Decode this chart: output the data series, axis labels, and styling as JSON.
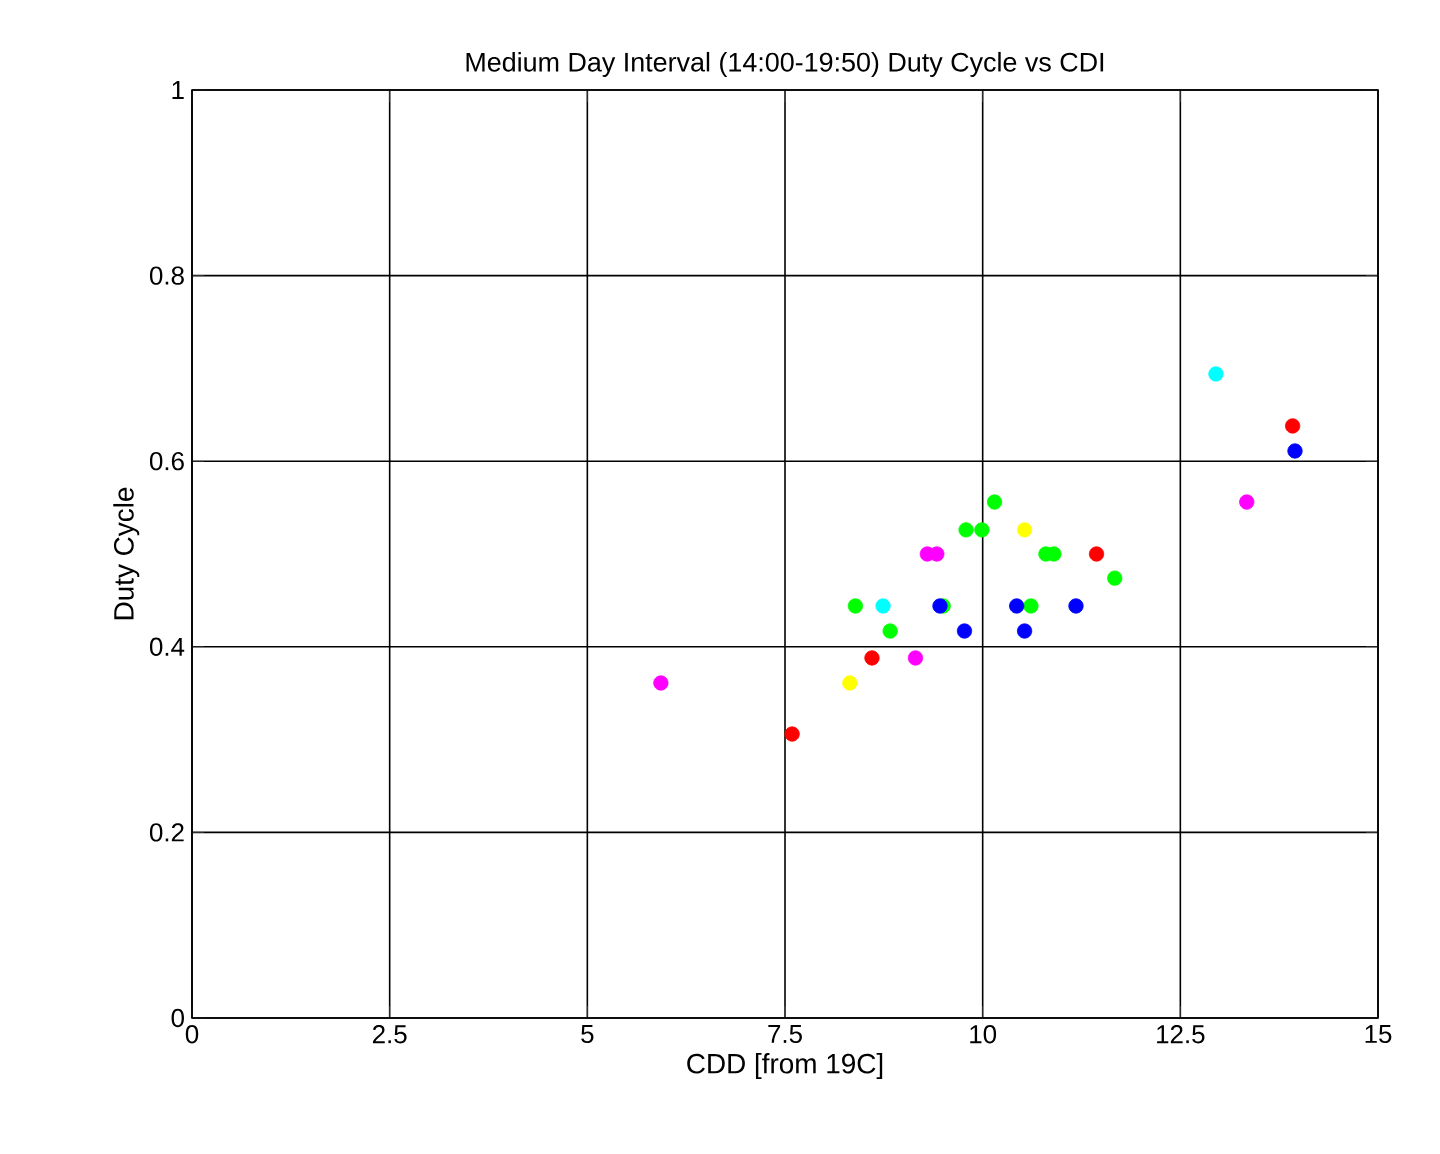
{
  "chart_data": {
    "type": "scatter",
    "title": "Medium Day Interval (14:00-19:50) Duty Cycle vs CDI",
    "xlabel": "CDD [from 19C]",
    "ylabel": "Duty Cycle",
    "xlim": [
      0,
      15
    ],
    "ylim": [
      0,
      1
    ],
    "xticks": [
      0,
      2.5,
      5,
      7.5,
      10,
      12.5,
      15
    ],
    "yticks": [
      0,
      0.2,
      0.4,
      0.6,
      0.8,
      1
    ],
    "grid": true,
    "marker": "circle",
    "series": [
      {
        "color": "#ff0000",
        "x": [
          7.59,
          8.6,
          11.44,
          13.92
        ],
        "values": [
          0.306,
          0.388,
          0.5,
          0.638
        ]
      },
      {
        "color": "#ff00ff",
        "x": [
          5.93,
          9.15,
          9.3,
          9.42,
          13.34
        ],
        "values": [
          0.361,
          0.388,
          0.5,
          0.5,
          0.556
        ]
      },
      {
        "color": "#ffff00",
        "x": [
          8.32,
          10.53
        ],
        "values": [
          0.361,
          0.526
        ]
      },
      {
        "color": "#00ffff",
        "x": [
          8.74,
          12.95
        ],
        "values": [
          0.444,
          0.694
        ]
      },
      {
        "color": "#00ff00",
        "x": [
          8.39,
          8.83,
          9.5,
          9.79,
          9.99,
          10.15,
          10.61,
          10.8,
          10.9,
          11.67
        ],
        "values": [
          0.444,
          0.417,
          0.444,
          0.526,
          0.526,
          0.556,
          0.444,
          0.5,
          0.5,
          0.474
        ]
      },
      {
        "color": "#0000ff",
        "x": [
          9.46,
          9.77,
          10.43,
          10.53,
          11.18,
          13.95
        ],
        "values": [
          0.444,
          0.417,
          0.444,
          0.417,
          0.444,
          0.611
        ]
      }
    ]
  }
}
